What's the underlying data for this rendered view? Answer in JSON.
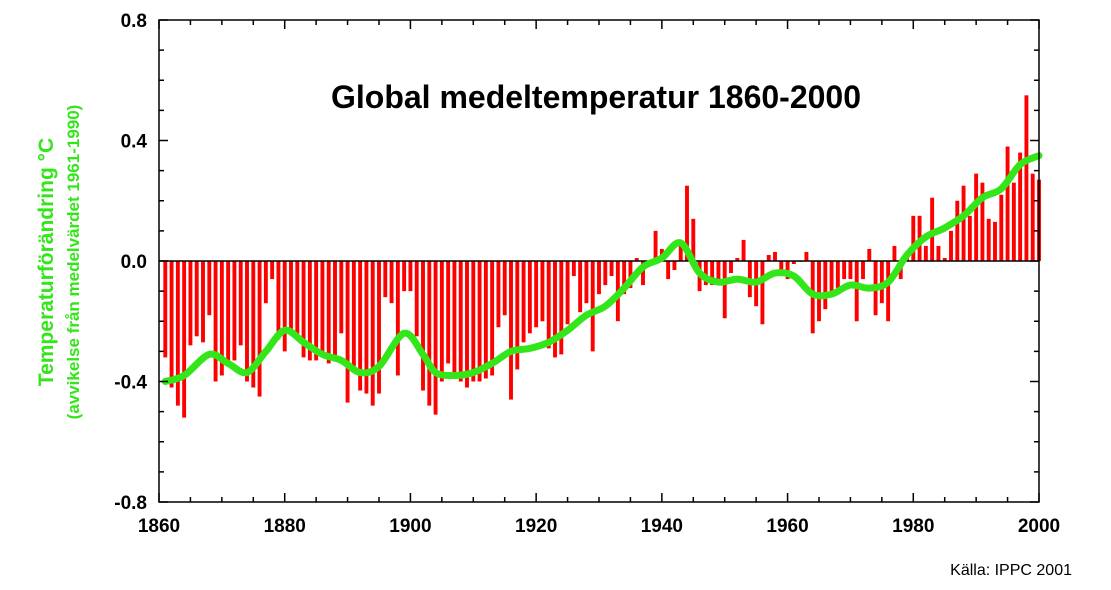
{
  "chart_data": {
    "type": "bar",
    "title": "Global medeltemperatur 1860-2000",
    "ylabel": "Temperaturförändring °C",
    "ylabel_sub": "(avvikelse från medelvärdet 1961-1990)",
    "source": "Källa: IPPC 2001",
    "xlim": [
      1860,
      2000
    ],
    "ylim": [
      -0.8,
      0.8
    ],
    "x_ticks": [
      1860,
      1880,
      1900,
      1920,
      1940,
      1960,
      1980,
      2000
    ],
    "y_ticks": [
      -0.8,
      -0.4,
      0.0,
      0.4,
      0.8
    ],
    "y_tick_labels": [
      "-0.8",
      "-0.4",
      "0.0",
      "0.4",
      "0.8"
    ],
    "grid": false,
    "series": [
      {
        "type": "bar",
        "color": "#ff0000",
        "x": [
          1861,
          1862,
          1863,
          1864,
          1865,
          1866,
          1867,
          1868,
          1869,
          1870,
          1871,
          1872,
          1873,
          1874,
          1875,
          1876,
          1877,
          1878,
          1879,
          1880,
          1881,
          1882,
          1883,
          1884,
          1885,
          1886,
          1887,
          1888,
          1889,
          1890,
          1891,
          1892,
          1893,
          1894,
          1895,
          1896,
          1897,
          1898,
          1899,
          1900,
          1901,
          1902,
          1903,
          1904,
          1905,
          1906,
          1907,
          1908,
          1909,
          1910,
          1911,
          1912,
          1913,
          1914,
          1915,
          1916,
          1917,
          1918,
          1919,
          1920,
          1921,
          1922,
          1923,
          1924,
          1925,
          1926,
          1927,
          1928,
          1929,
          1930,
          1931,
          1932,
          1933,
          1934,
          1935,
          1936,
          1937,
          1938,
          1939,
          1940,
          1941,
          1942,
          1943,
          1944,
          1945,
          1946,
          1947,
          1948,
          1949,
          1950,
          1951,
          1952,
          1953,
          1954,
          1955,
          1956,
          1957,
          1958,
          1959,
          1960,
          1961,
          1962,
          1963,
          1964,
          1965,
          1966,
          1967,
          1968,
          1969,
          1970,
          1971,
          1972,
          1973,
          1974,
          1975,
          1976,
          1977,
          1978,
          1979,
          1980,
          1981,
          1982,
          1983,
          1984,
          1985,
          1986,
          1987,
          1988,
          1989,
          1990,
          1991,
          1992,
          1993,
          1994,
          1995,
          1996,
          1997,
          1998,
          1999,
          2000
        ],
        "values": [
          -0.32,
          -0.42,
          -0.48,
          -0.52,
          -0.28,
          -0.25,
          -0.27,
          -0.18,
          -0.4,
          -0.38,
          -0.35,
          -0.33,
          -0.28,
          -0.4,
          -0.42,
          -0.45,
          -0.14,
          -0.06,
          -0.26,
          -0.3,
          -0.23,
          -0.26,
          -0.32,
          -0.33,
          -0.33,
          -0.3,
          -0.34,
          -0.32,
          -0.24,
          -0.47,
          -0.35,
          -0.43,
          -0.44,
          -0.48,
          -0.44,
          -0.12,
          -0.14,
          -0.38,
          -0.1,
          -0.1,
          -0.25,
          -0.43,
          -0.48,
          -0.51,
          -0.4,
          -0.34,
          -0.38,
          -0.4,
          -0.42,
          -0.4,
          -0.4,
          -0.39,
          -0.38,
          -0.22,
          -0.18,
          -0.46,
          -0.36,
          -0.27,
          -0.24,
          -0.22,
          -0.2,
          -0.29,
          -0.32,
          -0.31,
          -0.21,
          -0.05,
          -0.17,
          -0.14,
          -0.3,
          -0.11,
          -0.08,
          -0.05,
          -0.2,
          -0.11,
          -0.09,
          0.01,
          -0.08,
          0.0,
          0.1,
          0.04,
          -0.06,
          -0.03,
          0.05,
          0.25,
          0.14,
          -0.1,
          -0.08,
          -0.08,
          -0.08,
          -0.19,
          -0.04,
          0.01,
          0.07,
          -0.12,
          -0.15,
          -0.21,
          0.02,
          0.03,
          -0.04,
          -0.06,
          -0.01,
          0.0,
          0.03,
          -0.24,
          -0.2,
          -0.16,
          -0.1,
          -0.09,
          -0.06,
          -0.06,
          -0.2,
          -0.06,
          0.04,
          -0.18,
          -0.14,
          -0.2,
          0.05,
          -0.06,
          0.03,
          0.15,
          0.15,
          0.05,
          0.21,
          0.05,
          0.01,
          0.1,
          0.2,
          0.25,
          0.15,
          0.29,
          0.26,
          0.14,
          0.13,
          0.22,
          0.38,
          0.26,
          0.36,
          0.55,
          0.29,
          0.27
        ]
      },
      {
        "type": "line",
        "color": "#33e619",
        "x": [
          1861,
          1864,
          1868,
          1871,
          1874,
          1877,
          1880,
          1883,
          1886,
          1889,
          1892,
          1895,
          1899,
          1902,
          1904,
          1907,
          1910,
          1913,
          1916,
          1919,
          1922,
          1925,
          1928,
          1931,
          1934,
          1937,
          1940,
          1943,
          1946,
          1949,
          1952,
          1955,
          1958,
          1961,
          1964,
          1967,
          1970,
          1973,
          1976,
          1979,
          1982,
          1985,
          1988,
          1991,
          1994,
          1997,
          2000
        ],
        "values": [
          -0.4,
          -0.38,
          -0.31,
          -0.34,
          -0.37,
          -0.3,
          -0.23,
          -0.27,
          -0.31,
          -0.33,
          -0.37,
          -0.35,
          -0.24,
          -0.31,
          -0.37,
          -0.38,
          -0.37,
          -0.34,
          -0.3,
          -0.29,
          -0.27,
          -0.23,
          -0.18,
          -0.15,
          -0.09,
          -0.02,
          0.01,
          0.06,
          -0.04,
          -0.07,
          -0.06,
          -0.07,
          -0.04,
          -0.05,
          -0.11,
          -0.11,
          -0.08,
          -0.09,
          -0.07,
          0.02,
          0.08,
          0.11,
          0.15,
          0.21,
          0.24,
          0.32,
          0.35
        ]
      }
    ]
  }
}
